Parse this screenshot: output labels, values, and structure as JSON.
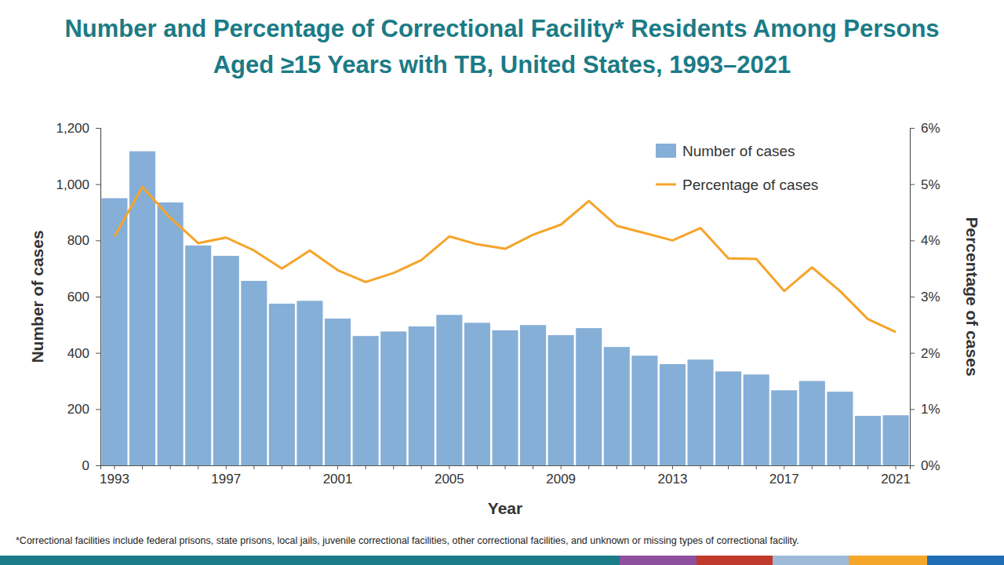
{
  "chart_data": {
    "type": "bar",
    "title": "Number and Percentage of Correctional Facility* Residents Among Persons Aged ≥15 Years with TB, United States, 1993–2021",
    "footnote": "*Correctional facilities include federal prisons, state prisons, local jails, juvenile correctional facilities, other correctional facilities, and unknown or missing types of correctional facility.",
    "xlabel": "Year",
    "ylabel": "Number of cases",
    "y2label": "Percentage of cases",
    "categories": [
      "1993",
      null,
      null,
      null,
      "1997",
      null,
      null,
      null,
      "2001",
      null,
      null,
      null,
      "2005",
      null,
      null,
      null,
      "2009",
      null,
      null,
      null,
      "2013",
      null,
      null,
      null,
      "2017",
      null,
      null,
      null,
      "2021"
    ],
    "series": [
      {
        "name": "Number of cases",
        "type": "bar",
        "color": "#86afd7",
        "values": [
          950,
          1117,
          935,
          782,
          745,
          656,
          575,
          585,
          522,
          460,
          476,
          494,
          535,
          507,
          480,
          499,
          463,
          488,
          421,
          390,
          360,
          376,
          334,
          323,
          267,
          300,
          262,
          176,
          178
        ]
      },
      {
        "name": "Percentage of cases",
        "type": "line",
        "color": "#f5a42a",
        "axis": "y2",
        "values": [
          4.07,
          4.95,
          4.4,
          3.95,
          4.05,
          3.82,
          3.5,
          3.82,
          3.47,
          3.26,
          3.42,
          3.65,
          4.07,
          3.93,
          3.85,
          4.1,
          4.28,
          4.7,
          4.26,
          4.13,
          4.0,
          4.22,
          3.68,
          3.67,
          3.1,
          3.52,
          3.1,
          2.6,
          2.37
        ]
      }
    ],
    "ylim": [
      0,
      1200
    ],
    "yticks": [
      0,
      200,
      400,
      600,
      800,
      {
        "value": 1000,
        "label": "1,000"
      },
      {
        "value": 1200,
        "label": "1,200"
      }
    ],
    "y2lim": [
      0,
      6
    ],
    "y2ticks": [
      {
        "value": 0,
        "label": "0%"
      },
      {
        "value": 1,
        "label": "1%"
      },
      {
        "value": 2,
        "label": "2%"
      },
      {
        "value": 3,
        "label": "3%"
      },
      {
        "value": 4,
        "label": "4%"
      },
      {
        "value": 5,
        "label": "5%"
      },
      {
        "value": 6,
        "label": "6%"
      }
    ],
    "legend": "upper-right",
    "grid": false
  }
}
